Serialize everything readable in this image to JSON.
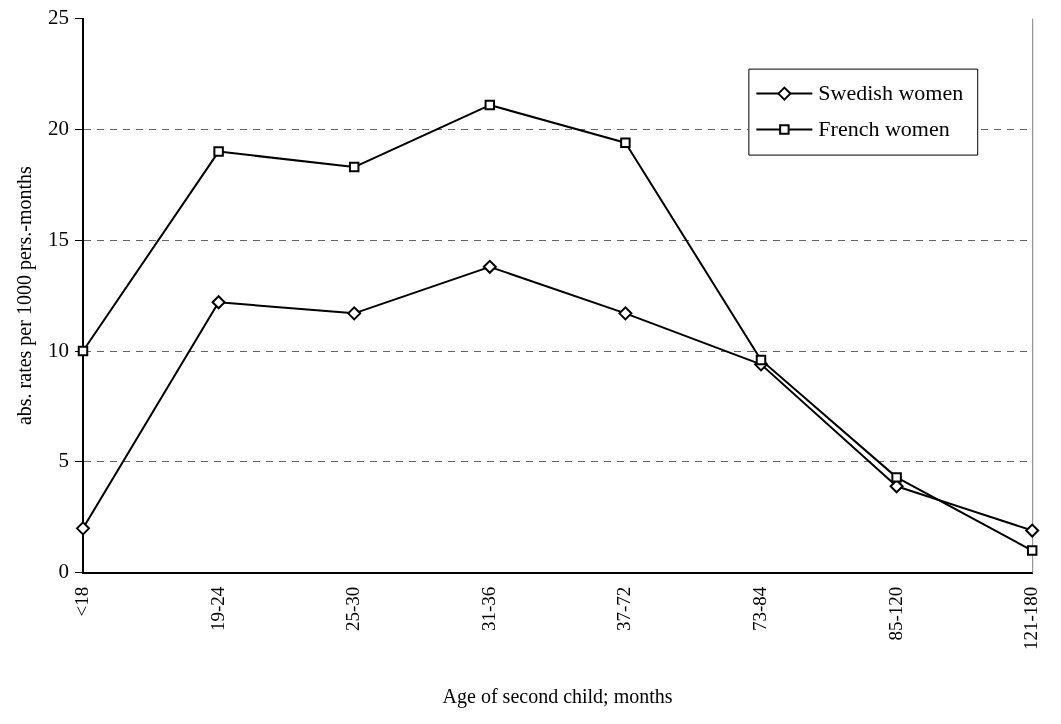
{
  "chart_data": {
    "type": "line",
    "xlabel": "Age of second child; months",
    "ylabel": "abs. rates per 1000 pers.-months",
    "categories": [
      "<18",
      "19-24",
      "25-30",
      "31-36",
      "37-72",
      "73-84",
      "85-120",
      "121-180"
    ],
    "series": [
      {
        "name": "Swedish women",
        "color": "#000000",
        "marker": "diamond",
        "values": [
          2.0,
          12.2,
          11.7,
          13.8,
          11.7,
          9.4,
          3.9,
          1.9
        ]
      },
      {
        "name": "French women",
        "color": "#000000",
        "marker": "square",
        "values": [
          10.0,
          19.0,
          18.3,
          21.1,
          19.4,
          9.6,
          4.3,
          1.0
        ]
      }
    ],
    "ylim": [
      0,
      25
    ],
    "yticks": [
      0,
      5,
      10,
      15,
      20,
      25
    ],
    "grid": "y",
    "legend": "top right",
    "line_style": "solid"
  }
}
